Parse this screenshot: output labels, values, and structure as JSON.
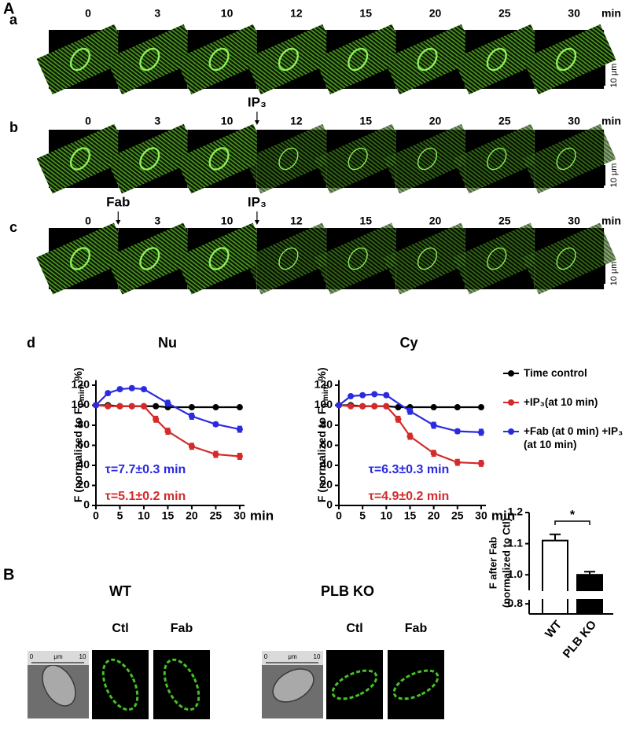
{
  "panel_a": {
    "label": "A",
    "chart_label": "d",
    "rows": [
      {
        "label": "a",
        "times": [
          0,
          3,
          10,
          12,
          15,
          20,
          25,
          30
        ],
        "unit": "min",
        "scale_bar": "10 μm"
      },
      {
        "label": "b",
        "times": [
          0,
          3,
          10,
          12,
          15,
          20,
          25,
          30
        ],
        "unit": "min",
        "scale_bar": "10 μm",
        "markers": [
          "IP₃"
        ]
      },
      {
        "label": "c",
        "times": [
          0,
          3,
          10,
          12,
          15,
          20,
          25,
          30
        ],
        "unit": "min",
        "scale_bar": "10 μm",
        "markers": [
          "Fab",
          "IP₃"
        ]
      }
    ]
  },
  "panel_b": {
    "label": "B",
    "groups": [
      {
        "title": "WT",
        "scale_labels": [
          "0",
          "μm",
          "10"
        ],
        "conditions": [
          "Ctl",
          "Fab"
        ]
      },
      {
        "title": "PLB KO",
        "scale_labels": [
          "0",
          "μm",
          "10"
        ],
        "conditions": [
          "Ctl",
          "Fab"
        ]
      }
    ]
  },
  "chart_data": [
    {
      "type": "line",
      "title": "Nu",
      "ylabel": {
        "text": "F (normalized to F",
        "sub": "0 min",
        "tail": ", %)"
      },
      "xlabel": "min",
      "xlim": [
        0,
        31
      ],
      "xticks": [
        0,
        5,
        10,
        15,
        20,
        25,
        30
      ],
      "ylim": [
        0,
        125
      ],
      "yticks": [
        0,
        20,
        40,
        60,
        80,
        100,
        120
      ],
      "series": [
        {
          "name": "Time control",
          "color": "#000000",
          "x": [
            0,
            2.5,
            5,
            7.5,
            10,
            12.5,
            15,
            20,
            25,
            30
          ],
          "values": [
            100,
            100,
            99,
            99,
            99,
            99,
            98,
            98,
            98,
            98
          ]
        },
        {
          "name": "+IP₃(at 10 min)",
          "color": "#d42a2a",
          "x": [
            0,
            2.5,
            5,
            7.5,
            10,
            12.5,
            15,
            20,
            25,
            30
          ],
          "values": [
            100,
            99,
            99,
            99,
            99,
            86,
            74,
            59,
            51,
            49
          ],
          "errors": [
            0,
            1,
            1,
            1,
            1,
            3,
            3,
            3,
            3,
            3
          ]
        },
        {
          "name": "+Fab (at 0 min) +IP₃ (at 10 min)",
          "color": "#2a2ae0",
          "x": [
            0,
            2.5,
            5,
            7.5,
            10,
            15,
            20,
            25,
            30
          ],
          "values": [
            100,
            112,
            116,
            117,
            116,
            102,
            89,
            81,
            76
          ],
          "errors": [
            1,
            2,
            2,
            2,
            2,
            3,
            3,
            2,
            3
          ]
        }
      ],
      "annotations": [
        {
          "text": "τ=7.7±0.3 min",
          "color": "#2a2ae0"
        },
        {
          "text": "τ=5.1±0.2 min",
          "color": "#d42a2a"
        }
      ]
    },
    {
      "type": "line",
      "title": "Cy",
      "ylabel": {
        "text": "F (normalized to F",
        "sub": "0 min",
        "tail": ", %)"
      },
      "xlabel": "min",
      "xlim": [
        0,
        31
      ],
      "xticks": [
        0,
        5,
        10,
        15,
        20,
        25,
        30
      ],
      "ylim": [
        0,
        125
      ],
      "yticks": [
        0,
        20,
        40,
        60,
        80,
        100,
        120
      ],
      "series": [
        {
          "color": "#000000",
          "x": [
            0,
            2.5,
            5,
            7.5,
            10,
            12.5,
            15,
            20,
            25,
            30
          ],
          "values": [
            100,
            100,
            99,
            99,
            99,
            98,
            98,
            98,
            98,
            98
          ]
        },
        {
          "color": "#d42a2a",
          "x": [
            0,
            2.5,
            5,
            7.5,
            10,
            12.5,
            15,
            20,
            25,
            30
          ],
          "values": [
            100,
            99,
            99,
            99,
            99,
            86,
            69,
            52,
            43,
            42
          ],
          "errors": [
            0,
            1,
            1,
            1,
            1,
            3,
            3,
            3,
            3,
            3
          ]
        },
        {
          "color": "#2a2ae0",
          "x": [
            0,
            2.5,
            5,
            7.5,
            10,
            15,
            20,
            25,
            30
          ],
          "values": [
            100,
            109,
            110,
            111,
            110,
            94,
            80,
            74,
            73
          ],
          "errors": [
            1,
            1,
            1,
            1,
            2,
            3,
            3,
            2,
            3
          ]
        }
      ],
      "annotations": [
        {
          "text": "τ=6.3±0.3 min",
          "color": "#2a2ae0"
        },
        {
          "text": "τ=4.9±0.2 min",
          "color": "#d42a2a"
        }
      ]
    },
    {
      "type": "bar",
      "ylabel": [
        "F after Fab",
        "(normalized to Ctl)"
      ],
      "categories": [
        "WT",
        "PLB KO"
      ],
      "values": [
        1.11,
        1.0
      ],
      "errors": [
        0.02,
        0.01
      ],
      "colors": [
        "#ffffff",
        "#000000"
      ],
      "ylim": [
        0.75,
        1.2
      ],
      "y_break": [
        0.82,
        0.95
      ],
      "yticks": [
        0.8,
        {
          "value": 1,
          "label": "1.0"
        },
        1.1,
        1.2
      ],
      "annotations": [
        {
          "text": "*"
        }
      ]
    }
  ]
}
